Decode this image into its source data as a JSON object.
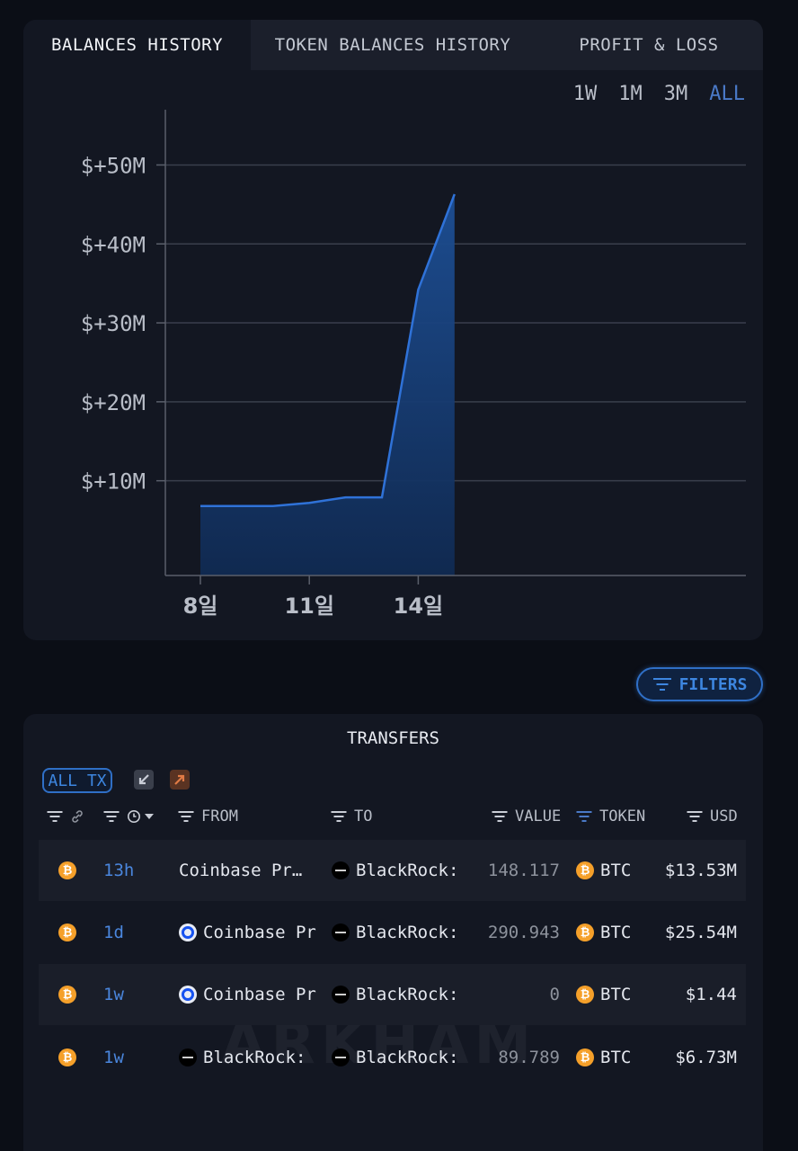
{
  "tabs": [
    {
      "label": "BALANCES HISTORY",
      "active": true
    },
    {
      "label": "TOKEN BALANCES HISTORY",
      "active": false
    },
    {
      "label": "PROFIT & LOSS",
      "active": false
    }
  ],
  "ranges": [
    {
      "label": "1W",
      "active": false
    },
    {
      "label": "1M",
      "active": false
    },
    {
      "label": "3M",
      "active": false
    },
    {
      "label": "ALL",
      "active": true
    }
  ],
  "chart_data": {
    "type": "area",
    "x": [
      "8일",
      "9일",
      "10일",
      "11일",
      "12일",
      "13일",
      "14일",
      "15일"
    ],
    "xticks": [
      "8일",
      "11일",
      "14일"
    ],
    "y": [
      6.8,
      6.8,
      6.8,
      7.2,
      7.9,
      7.9,
      34.2,
      46.3
    ],
    "yticks": [
      10,
      20,
      30,
      40,
      50
    ],
    "ytick_labels": [
      "$+10M",
      "$+20M",
      "$+30M",
      "$+40M",
      "$+50M"
    ],
    "ylim": [
      -2,
      57
    ],
    "grid": true,
    "line_color": "#2f72d8",
    "fill_color": "#1a4684"
  },
  "filters": {
    "label": "FILTERS"
  },
  "transfers": {
    "title": "TRANSFERS",
    "all_tx_label": "ALL TX",
    "headers": {
      "from": "FROM",
      "to": "TO",
      "value": "VALUE",
      "token": "TOKEN",
      "usd": "USD"
    },
    "rows": [
      {
        "time": "13h",
        "from": "Coinbase Pr…",
        "from_icon": "",
        "to": "BlackRock:",
        "value": "148.117",
        "token": "BTC",
        "usd": "$13.53M"
      },
      {
        "time": "1d",
        "from": "Coinbase Pr",
        "from_icon": "coinbase",
        "to": "BlackRock:",
        "value": "290.943",
        "token": "BTC",
        "usd": "$25.54M"
      },
      {
        "time": "1w",
        "from": "Coinbase Pr",
        "from_icon": "coinbase",
        "to": "BlackRock:",
        "value": "0",
        "token": "BTC",
        "usd": "$1.44"
      },
      {
        "time": "1w",
        "from": "BlackRock:",
        "from_icon": "blackrock",
        "to": "BlackRock:",
        "value": "89.789",
        "token": "BTC",
        "usd": "$6.73M"
      }
    ]
  },
  "watermark": "ARKHAM",
  "colors": {
    "accent": "#2f6fc6",
    "background": "#0b0e16",
    "panel": "#131722",
    "btc": "#f5a02a"
  }
}
